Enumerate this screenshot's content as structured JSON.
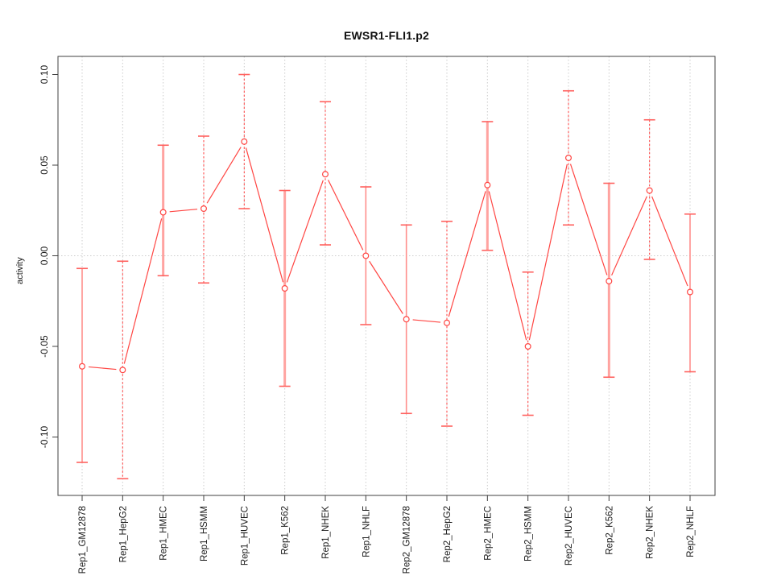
{
  "title": "EWSR1-FLI1.p2",
  "chart_data": {
    "type": "scatter",
    "subtype": "point-estimates-with-error-bars",
    "title": "EWSR1-FLI1.p2",
    "xlabel": "",
    "ylabel": "activity",
    "legend": "none",
    "categories": [
      "Rep1_GM12878",
      "Rep1_HepG2",
      "Rep1_HMEC",
      "Rep1_HSMM",
      "Rep1_HUVEC",
      "Rep1_K562",
      "Rep1_NHEK",
      "Rep1_NHLF",
      "Rep2_GM12878",
      "Rep2_HepG2",
      "Rep2_HMEC",
      "Rep2_HSMM",
      "Rep2_HUVEC",
      "Rep2_K562",
      "Rep2_NHEK",
      "Rep2_NHLF"
    ],
    "series": [
      {
        "name": "activity",
        "values": [
          -0.061,
          -0.063,
          0.024,
          0.026,
          0.063,
          -0.018,
          0.045,
          0.0,
          -0.035,
          -0.037,
          0.039,
          -0.05,
          0.054,
          -0.014,
          0.036,
          -0.02
        ],
        "upper": [
          -0.007,
          -0.003,
          0.061,
          0.066,
          0.1,
          0.036,
          0.085,
          0.038,
          0.017,
          0.019,
          0.074,
          -0.009,
          0.091,
          0.04,
          0.075,
          0.023
        ],
        "lower": [
          -0.114,
          -0.123,
          -0.011,
          -0.015,
          0.026,
          -0.072,
          0.006,
          -0.038,
          -0.087,
          -0.094,
          0.003,
          -0.088,
          0.017,
          -0.067,
          -0.002,
          -0.064
        ],
        "whisker_styles": [
          "solid",
          "dashed",
          "thick",
          "dashed",
          "dashed",
          "thick",
          "dashed",
          "solid",
          "solid",
          "dashed",
          "thick",
          "dashed",
          "dashed",
          "thick",
          "dashed",
          "solid"
        ]
      }
    ],
    "yticks": [
      -0.1,
      -0.05,
      0.0,
      0.05,
      0.1
    ],
    "ytick_labels": [
      "-0.10",
      "-0.05",
      "0.00",
      "0.05",
      "0.10"
    ],
    "ylim": [
      -0.132,
      0.11
    ],
    "grid": {
      "vertical_dotted_per_category": true,
      "horizontal_dotted_zero_line": true
    },
    "colors": {
      "point": "#ff4643",
      "line": "#ff4643",
      "whisker_solid": "#ff8f8c",
      "whisker_thick": "#ffa3a0",
      "whisker_dashed": "#ff5050",
      "cap": "#ff625f",
      "grid": "#cccccc",
      "box": "#404040",
      "text": "#1a1a1a",
      "background": "#ffffff"
    }
  }
}
